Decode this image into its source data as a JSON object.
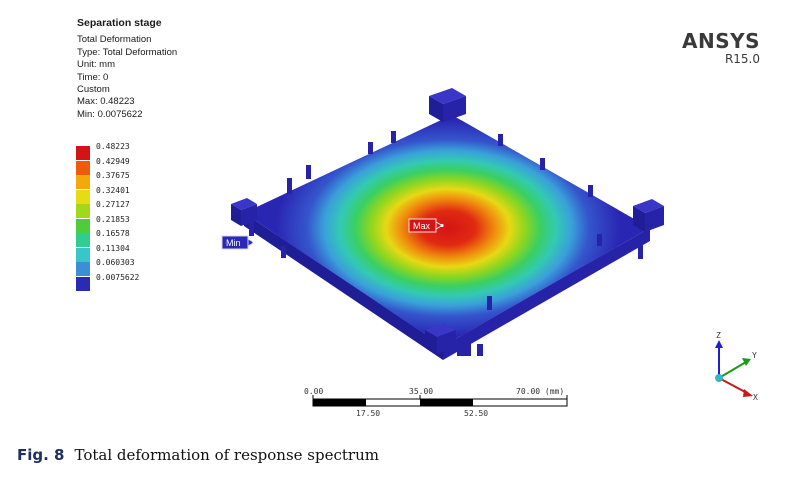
{
  "info": {
    "title": "Separation stage",
    "result": "Total Deformation",
    "type": "Type: Total Deformation",
    "unit": "Unit: mm",
    "time": "Time: 0",
    "mode": "Custom",
    "max": "Max: 0.48223",
    "min": "Min: 0.0075622"
  },
  "legend": [
    {
      "label": "0.48223",
      "color": "#d41414"
    },
    {
      "label": "0.42949",
      "color": "#ee5a0e"
    },
    {
      "label": "0.37675",
      "color": "#f5a80c"
    },
    {
      "label": "0.32401",
      "color": "#e5dc14"
    },
    {
      "label": "0.27127",
      "color": "#a2d81c"
    },
    {
      "label": "0.21853",
      "color": "#4ecc3a"
    },
    {
      "label": "0.16578",
      "color": "#2fcd8e"
    },
    {
      "label": "0.11304",
      "color": "#38c6c8"
    },
    {
      "label": "0.060303",
      "color": "#3b8fd8"
    },
    {
      "label": "0.0075622",
      "color": "#2a2ab4"
    }
  ],
  "brand": {
    "name": "ANSYS",
    "version": "R15.0"
  },
  "markers": {
    "max": "Max",
    "min": "Min"
  },
  "scale": {
    "top_labels": [
      "0.00",
      "35.00",
      "70.00 (mm)"
    ],
    "bottom_labels": [
      "17.50",
      "52.50"
    ]
  },
  "triad": {
    "z": "Z",
    "y": "Y",
    "x": "X"
  },
  "caption": {
    "fig": "Fig. 8",
    "text": "Total deformation of response spectrum"
  }
}
